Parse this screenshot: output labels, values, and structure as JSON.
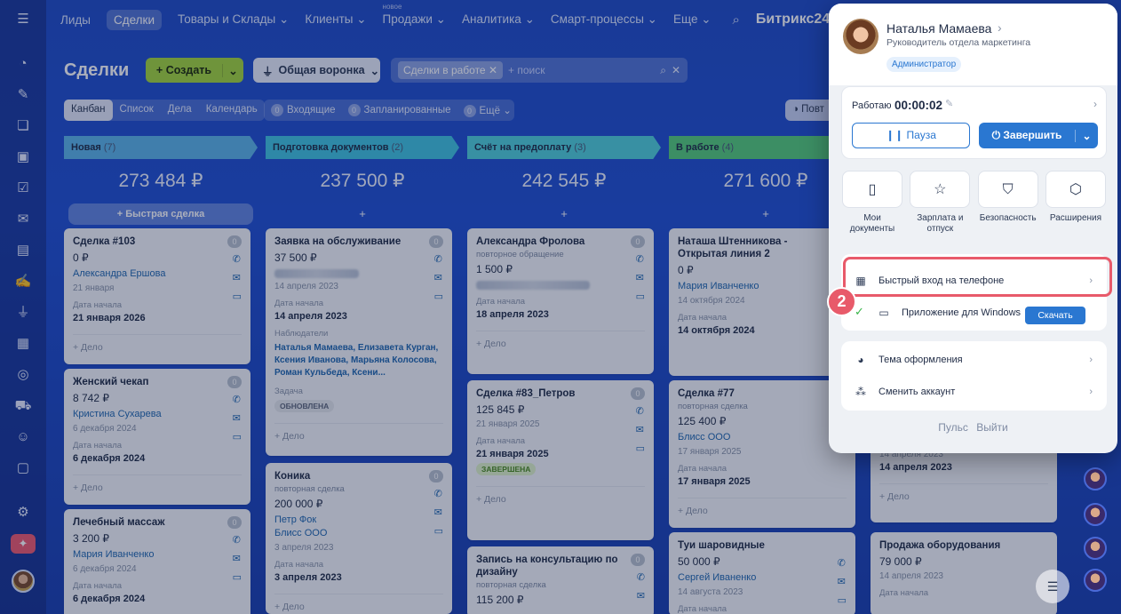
{
  "nav": {
    "items": [
      "Лиды",
      "Сделки",
      "Товары и Склады",
      "Клиенты",
      "Продажи",
      "Аналитика",
      "Смарт-процессы",
      "Еще"
    ],
    "new_badge": "новое",
    "brand": "Битрикс",
    "brand_num": "24"
  },
  "header": {
    "title": "Сделки",
    "create_label": "Создать",
    "funnel_label": "Общая воронка",
    "filter_chip": "Сделки в работе",
    "search_placeholder": "+ поиск"
  },
  "views": [
    "Канбан",
    "Список",
    "Дела",
    "Календарь"
  ],
  "counters": [
    {
      "num": "0",
      "label": "Входящие"
    },
    {
      "num": "0",
      "label": "Запланированные"
    },
    {
      "num": "0",
      "label": "Ещё"
    }
  ],
  "povt_label": "Повт",
  "columns": [
    {
      "name": "Новая",
      "count": "(7)",
      "sum": "273 484 ₽",
      "color": "#5bb4e8",
      "add_label": "Быстрая сделка"
    },
    {
      "name": "Подготовка документов",
      "count": "(2)",
      "sum": "237 500 ₽",
      "color": "#3fc4e0",
      "add_label": "+"
    },
    {
      "name": "Счёт на предоплату",
      "count": "(3)",
      "sum": "242 545 ₽",
      "color": "#4fd0da",
      "add_label": "+"
    },
    {
      "name": "В работе",
      "count": "(4)",
      "sum": "271 600 ₽",
      "color": "#55cc7a",
      "add_label": "+"
    }
  ],
  "cards": {
    "c1": {
      "title": "Сделка #103",
      "sum": "0 ₽",
      "contact": "Александра Ершова",
      "date": "21 января",
      "start_label": "Дата начала",
      "start": "21 января 2026",
      "foot": "+ Дело",
      "badge": "0"
    },
    "c2": {
      "title": "Женский чекап",
      "sum": "8 742 ₽",
      "contact": "Кристина Сухарева",
      "date": "6 декабря 2024",
      "start_label": "Дата начала",
      "start": "6 декабря 2024",
      "foot": "+ Дело",
      "badge": "0"
    },
    "c3": {
      "title": "Лечебный массаж",
      "sum": "3 200 ₽",
      "contact": "Мария Иванченко",
      "date": "6 декабря 2024",
      "start_label": "Дата начала",
      "start": "6 декабря 2024",
      "badge": "0"
    },
    "c4": {
      "title": "Заявка на обслуживание",
      "sum": "37 500 ₽",
      "date": "14 апреля 2023",
      "start_label": "Дата начала",
      "start": "14 апреля 2023",
      "obs_label": "Наблюдатели",
      "observers": "Наталья Мамаева, Елизавета Курган, Ксения Иванова, Марьяна Колосова, Роман Кульбеда, Ксени...",
      "task_label": "Задача",
      "tag": "ОБНОВЛЕНА",
      "foot": "+ Дело",
      "badge": "0"
    },
    "c5": {
      "title": "Коника",
      "sub": "повторная сделка",
      "sum": "200 000 ₽",
      "contact1": "Петр Фок",
      "contact2": "Блисс ООО",
      "date": "3 апреля 2023",
      "start_label": "Дата начала",
      "start": "3 апреля 2023",
      "foot": "+ Дело",
      "badge": "0"
    },
    "c6": {
      "title": "Александра Фролова",
      "sub": "повторное обращение",
      "sum": "1 500 ₽",
      "date": "18 апреля 2023",
      "start_label": "Дата начала",
      "start": "18 апреля 2023",
      "foot": "+ Дело",
      "badge": "0"
    },
    "c7": {
      "title": "Сделка #83_Петров",
      "sum": "125 845 ₽",
      "date": "21 января 2025",
      "start_label": "Дата начала",
      "start": "21 января 2025",
      "tag": "ЗАВЕРШЕНА",
      "foot": "+ Дело",
      "badge": "0"
    },
    "c8": {
      "title": "Запись на консультацию по дизайну",
      "sub": "повторная сделка",
      "sum": "115 200 ₽",
      "badge": "0"
    },
    "c9": {
      "title": "Наташа Штенникова - Открытая линия 2",
      "sum": "0 ₽",
      "contact": "Мария Иванченко",
      "date": "14 октября 2024",
      "start_label": "Дата начала",
      "start": "14 октября 2024"
    },
    "c10": {
      "title": "Сделка #77",
      "sub": "повторная сделка",
      "sum": "125 400 ₽",
      "contact": "Блисс ООО",
      "date": "17 января 2025",
      "start_label": "Дата начала",
      "start": "17 января 2025",
      "foot": "+ Дело"
    },
    "c11": {
      "title": "Туи шаровидные",
      "sum": "50 000 ₽",
      "contact": "Сергей Иваненко",
      "date": "14 августа 2023",
      "start_label": "Дата начала"
    },
    "c12": {
      "date": "14 апреля 2023",
      "start": "14 апреля 2023",
      "foot": "+ Дело"
    },
    "c13": {
      "title": "Продажа оборудования",
      "sum": "79 000 ₽",
      "date": "14 апреля 2023",
      "start_label": "Дата начала"
    }
  },
  "popup": {
    "name": "Наталья Мамаева",
    "role": "Руководитель отдела маркетинга",
    "admin_badge": "Администратор",
    "work_label": "Работаю",
    "work_time": "00:00:02",
    "pause_label": "Пауза",
    "finish_label": "Завершить",
    "tiles": [
      {
        "icon": "document-icon",
        "label": "Мои документы"
      },
      {
        "icon": "star-icon",
        "label": "Зарплата и отпуск"
      },
      {
        "icon": "shield-icon",
        "label": "Безопасность"
      },
      {
        "icon": "cube-icon",
        "label": "Расширения"
      }
    ],
    "quick_login": "Быстрый вход на телефоне",
    "windows_app": "Приложение для Windows",
    "download_label": "Скачать",
    "theme": "Тема оформления",
    "switch_account": "Сменить аккаунт",
    "footer_pulse": "Пульс",
    "footer_logout": "Выйти"
  },
  "step_number": "2"
}
